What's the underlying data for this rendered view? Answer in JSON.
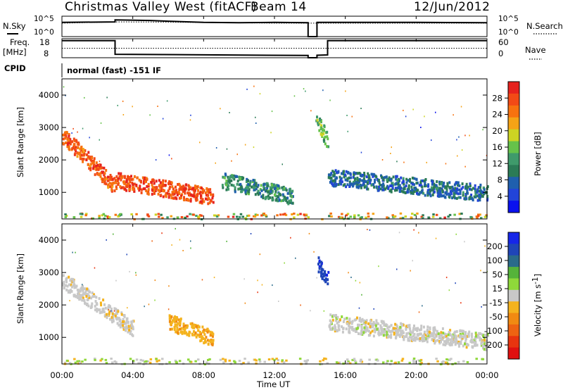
{
  "header": {
    "site": "Christmas Valley West (fitACF)",
    "beam": "Beam 14",
    "date": "12/Jun/2012"
  },
  "panel_labels": {
    "nsky": "N.Sky",
    "nsearch": "N.Search",
    "freq": "Freq.",
    "freq_unit": "[MHz]",
    "nave": "Nave",
    "cpid": "CPID",
    "mode": "normal (fast) -151 IF"
  },
  "axes": {
    "time_ticks": [
      "00:00",
      "04:00",
      "08:00",
      "12:00",
      "16:00",
      "20:00",
      "00:00"
    ],
    "xlabel": "Time UT",
    "ylabel": "Slant Range [km]",
    "range_ticks": [
      "1000",
      "2000",
      "3000",
      "4000"
    ],
    "noise_ticks_left": [
      "10^5",
      "10^0"
    ],
    "noise_ticks_right": [
      "10^5",
      "10^0"
    ],
    "freq_ticks": [
      "18",
      "8"
    ],
    "nave_ticks": [
      "60",
      "0"
    ]
  },
  "colorbars": {
    "power": {
      "label": "Power [dB]",
      "ticks": [
        "28",
        "24",
        "20",
        "16",
        "12",
        "8",
        "4"
      ],
      "colors": [
        "#e6221e",
        "#f24a16",
        "#f7720f",
        "#f5a316",
        "#cdd423",
        "#66c24a",
        "#3f9a6b",
        "#2b7b56",
        "#1f5fae",
        "#2244d8",
        "#0a11ee"
      ]
    },
    "velocity": {
      "label": "Velocity [m s",
      "label_sup": "-1",
      "label_end": "]",
      "ticks": [
        "200",
        "100",
        "50",
        "15",
        "-15",
        "-50",
        "-100",
        "-200"
      ],
      "colors": [
        "#1626e8",
        "#1f45b8",
        "#2a6b8a",
        "#55b33a",
        "#8fd83a",
        "#c8c8c8",
        "#f4b31e",
        "#f18a12",
        "#ee6312",
        "#e8340f",
        "#e01010"
      ]
    }
  },
  "chart_data": [
    {
      "type": "line",
      "title": "N.Sky / N.Search",
      "x_range": [
        0,
        24
      ],
      "y_scale": "log",
      "ylim": [
        1,
        100000
      ],
      "series": [
        {
          "name": "N.Sky",
          "x": [
            0,
            3,
            3,
            5,
            6,
            8,
            10,
            12,
            13.9,
            13.9,
            14.4,
            14.4,
            16,
            20,
            24
          ],
          "y": [
            3000,
            4000,
            12000,
            9000,
            6000,
            3000,
            2500,
            3000,
            2500,
            1,
            1,
            3000,
            3000,
            3000,
            2500
          ]
        },
        {
          "name": "N.Search",
          "x": [
            0,
            3,
            6,
            12,
            13.9,
            14.4,
            24
          ],
          "y": [
            2000,
            4000,
            3500,
            2000,
            2000,
            2000,
            2000
          ]
        }
      ]
    },
    {
      "type": "line",
      "title": "Freq. / Nave",
      "x_range": [
        0,
        24
      ],
      "series": [
        {
          "name": "Freq. [MHz]",
          "ylim": [
            8,
            18
          ],
          "x": [
            0,
            3,
            3,
            13.9,
            13.9,
            14.4,
            14.4,
            15,
            15,
            24
          ],
          "y": [
            17,
            17,
            9.8,
            9.2,
            8,
            8,
            9.3,
            9.5,
            17,
            17
          ]
        },
        {
          "name": "Nave",
          "ylim": [
            0,
            60
          ],
          "x": [
            0,
            24
          ],
          "y": [
            30,
            30
          ]
        }
      ]
    },
    {
      "type": "heatmap",
      "title": "Power [dB]",
      "x_range": [
        0,
        24
      ],
      "ylim": [
        180,
        4500
      ],
      "value_range": [
        0,
        30
      ],
      "features": [
        {
          "x0": 0,
          "x1": 3,
          "y0": 2800,
          "y1": 1200,
          "power": 26
        },
        {
          "x0": 3,
          "x1": 8.5,
          "y0": 1400,
          "y1": 900,
          "power": 27
        },
        {
          "x0": 9,
          "x1": 13,
          "y0": 1400,
          "y1": 900,
          "power": 10
        },
        {
          "x0": 14.3,
          "x1": 15,
          "y0": 3300,
          "y1": 2600,
          "power": 14
        },
        {
          "x0": 15,
          "x1": 24,
          "y0": 1500,
          "y1": 1000,
          "power": 7
        }
      ]
    },
    {
      "type": "heatmap",
      "title": "Velocity [m s-1]",
      "x_range": [
        0,
        24
      ],
      "ylim": [
        180,
        4500
      ],
      "value_range": [
        -250,
        250
      ],
      "features": [
        {
          "x0": 0,
          "x1": 4,
          "y0": 2800,
          "y1": 1300,
          "velocity": -5
        },
        {
          "x0": 6,
          "x1": 8.5,
          "y0": 1500,
          "y1": 1000,
          "velocity": -60
        },
        {
          "x0": 14.4,
          "x1": 15,
          "y0": 3300,
          "y1": 2800,
          "velocity": 220
        },
        {
          "x0": 15,
          "x1": 24,
          "y0": 1500,
          "y1": 900,
          "velocity": 0
        }
      ]
    }
  ]
}
